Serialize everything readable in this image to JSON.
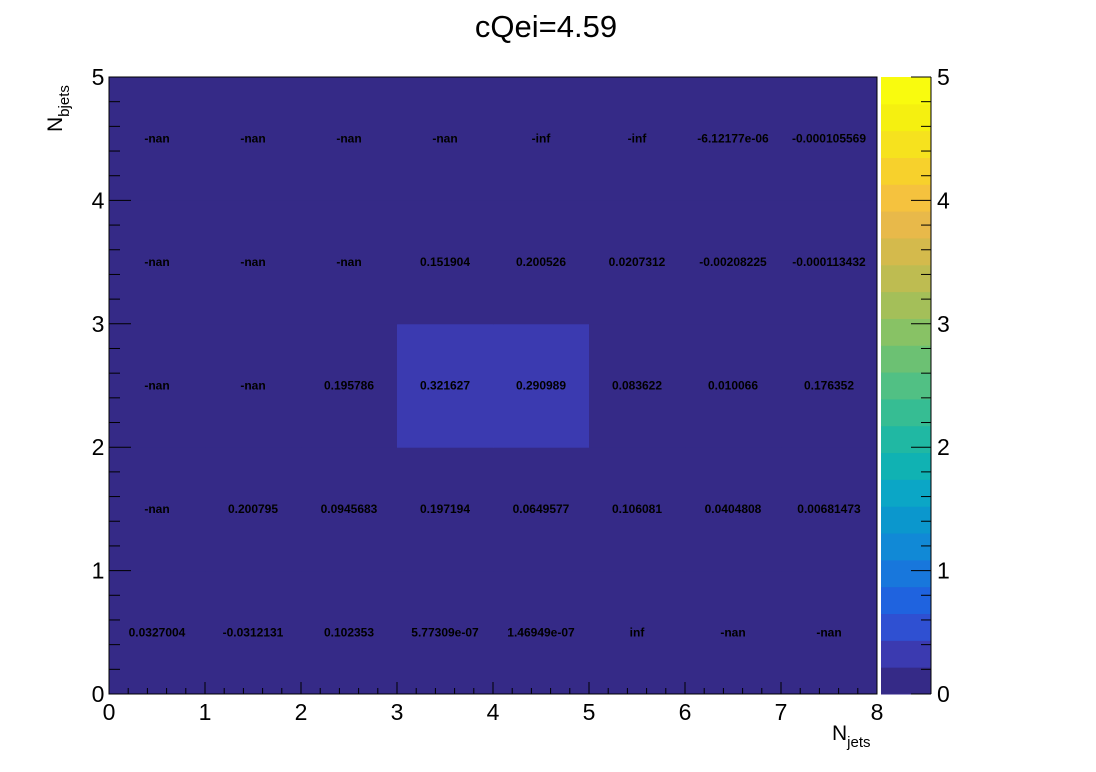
{
  "chart_data": {
    "type": "heatmap",
    "title": "cQei=4.59",
    "xlabel": {
      "main": "N",
      "sub": "jets"
    },
    "ylabel": {
      "main": "N",
      "sub": "bjets"
    },
    "xlim": [
      0,
      8
    ],
    "ylim": [
      0,
      5
    ],
    "x_ticks": [
      "0",
      "1",
      "2",
      "3",
      "4",
      "5",
      "6",
      "7",
      "8"
    ],
    "y_ticks": [
      "0",
      "1",
      "2",
      "3",
      "4",
      "5"
    ],
    "zlim": [
      0,
      5
    ],
    "z_ticks": [
      "0",
      "1",
      "2",
      "3",
      "4",
      "5"
    ],
    "palette": [
      "#352a87",
      "#3b3ab0",
      "#2f50d2",
      "#1f63df",
      "#1877dc",
      "#1189d6",
      "#0b97cd",
      "#0ba6c6",
      "#10b2b3",
      "#20b8a3",
      "#36bd93",
      "#51c084",
      "#6cc173",
      "#88c265",
      "#a4bf59",
      "#bebc51",
      "#d4ba4c",
      "#e8b94a",
      "#f5c23e",
      "#f7d12c",
      "#f6e21e",
      "#f5f010",
      "#f9fb0e"
    ],
    "cells": [
      [
        0.0327004,
        -0.0312131,
        0.102353,
        5.77309e-07,
        1.46949e-07,
        null,
        null,
        null
      ],
      [
        null,
        0.200795,
        0.0945683,
        0.197194,
        0.0649577,
        0.106081,
        0.0404808,
        0.00681473
      ],
      [
        null,
        null,
        0.195786,
        0.321627,
        0.290989,
        0.083622,
        0.010066,
        0.176352
      ],
      [
        null,
        null,
        null,
        0.151904,
        0.200526,
        0.0207312,
        -0.00208225,
        -0.000113432
      ],
      [
        null,
        null,
        null,
        null,
        null,
        null,
        -6.12177e-06,
        -0.000105569
      ]
    ],
    "cell_labels": [
      [
        "0.0327004",
        "-0.0312131",
        "0.102353",
        "5.77309e-07",
        "1.46949e-07",
        "inf",
        "-nan",
        "-nan"
      ],
      [
        "-nan",
        "0.200795",
        "0.0945683",
        "0.197194",
        "0.0649577",
        "0.106081",
        "0.0404808",
        "0.00681473"
      ],
      [
        "-nan",
        "-nan",
        "0.195786",
        "0.321627",
        "0.290989",
        "0.083622",
        "0.010066",
        "0.176352"
      ],
      [
        "-nan",
        "-nan",
        "-nan",
        "0.151904",
        "0.200526",
        "0.0207312",
        "-0.00208225",
        "-0.000113432"
      ],
      [
        "-nan",
        "-nan",
        "-nan",
        "-nan",
        "-inf",
        "-inf",
        "-6.12177e-06",
        "-0.000105569"
      ]
    ]
  }
}
